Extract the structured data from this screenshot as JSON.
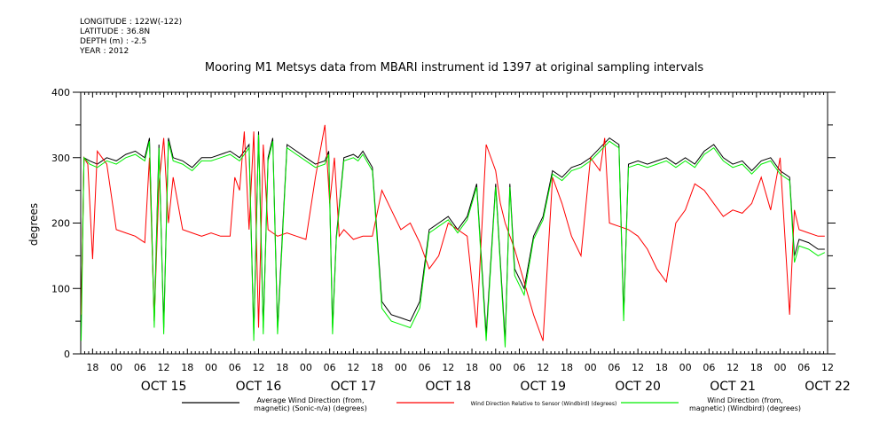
{
  "metadata": {
    "longitude": "LONGITUDE : 122W(-122)",
    "latitude": "LATITUDE : 36.8N",
    "depth": "DEPTH (m) : -2.5",
    "year": "YEAR : 2012"
  },
  "chart_data": {
    "type": "line",
    "title": "Mooring M1 Metsys data from MBARI instrument id 1397 at original sampling intervals",
    "ylabel": "degrees",
    "xlabel": "",
    "ylim": [
      0,
      400
    ],
    "xlim": [
      14.625,
      22.5
    ],
    "x_unit": "day of October 2012 (fractional)",
    "y_ticks": [
      0,
      100,
      200,
      300,
      400
    ],
    "x_hour_ticks": [
      "18",
      "00",
      "06",
      "12",
      "18",
      "00",
      "06",
      "12",
      "18",
      "00",
      "06",
      "12",
      "18",
      "00",
      "06",
      "12",
      "18",
      "00",
      "06",
      "12",
      "18",
      "00",
      "06",
      "12",
      "18",
      "00",
      "06",
      "12",
      "18",
      "00",
      "06",
      "12"
    ],
    "x_day_labels": [
      "OCT 15",
      "OCT 16",
      "OCT 17",
      "OCT 18",
      "OCT 19",
      "OCT 20",
      "OCT 21",
      "OCT 22"
    ],
    "grid": false,
    "legend_position": "bottom",
    "series": [
      {
        "name": "Average Wind Direction (from, magnetic) (Sonic-n/a) (degrees)",
        "legend_lines": [
          "Average Wind Direction (from,",
          "magnetic) (Sonic-n/a) (degrees)"
        ],
        "color": "#000000",
        "x": [
          14.63,
          14.66,
          14.72,
          14.8,
          14.9,
          15.0,
          15.1,
          15.2,
          15.3,
          15.35,
          15.4,
          15.45,
          15.5,
          15.55,
          15.6,
          15.7,
          15.8,
          15.9,
          16.0,
          16.1,
          16.2,
          16.3,
          16.4,
          16.45,
          16.5,
          16.55,
          16.6,
          16.65,
          16.7,
          16.8,
          16.9,
          17.0,
          17.1,
          17.2,
          17.24,
          17.28,
          17.32,
          17.4,
          17.5,
          17.55,
          17.6,
          17.7,
          17.8,
          17.85,
          17.9,
          18.0,
          18.1,
          18.2,
          18.3,
          18.4,
          18.5,
          18.6,
          18.7,
          18.8,
          18.9,
          19.0,
          19.1,
          19.15,
          19.2,
          19.3,
          19.4,
          19.5,
          19.6,
          19.7,
          19.8,
          19.9,
          20.0,
          20.1,
          20.2,
          20.3,
          20.35,
          20.4,
          20.5,
          20.6,
          20.7,
          20.8,
          20.9,
          21.0,
          21.1,
          21.2,
          21.3,
          21.4,
          21.5,
          21.6,
          21.7,
          21.8,
          21.9,
          22.0,
          22.1,
          22.15,
          22.2,
          22.3,
          22.4,
          22.47
        ],
        "y": [
          60,
          300,
          295,
          290,
          300,
          295,
          305,
          310,
          300,
          330,
          50,
          320,
          40,
          330,
          300,
          295,
          285,
          300,
          300,
          305,
          310,
          300,
          320,
          30,
          340,
          40,
          300,
          330,
          40,
          320,
          310,
          300,
          290,
          295,
          310,
          40,
          180,
          300,
          305,
          300,
          310,
          285,
          80,
          70,
          60,
          55,
          50,
          80,
          190,
          200,
          210,
          190,
          210,
          260,
          30,
          260,
          20,
          260,
          130,
          100,
          180,
          210,
          280,
          270,
          285,
          290,
          300,
          315,
          330,
          320,
          60,
          290,
          295,
          290,
          295,
          300,
          290,
          300,
          290,
          310,
          320,
          300,
          290,
          295,
          280,
          295,
          300,
          280,
          270,
          150,
          175,
          170,
          160,
          160
        ]
      },
      {
        "name": "Wind Direction Relative to Sensor (Windbird) (degrees)",
        "legend_lines": [
          "Wind Direction Relative to Sensor (Windbird) (degrees)"
        ],
        "color": "#ff0000",
        "x": [
          14.63,
          14.66,
          14.7,
          14.75,
          14.8,
          14.85,
          14.9,
          15.0,
          15.1,
          15.2,
          15.3,
          15.35,
          15.4,
          15.45,
          15.5,
          15.55,
          15.6,
          15.7,
          15.8,
          15.9,
          16.0,
          16.1,
          16.2,
          16.25,
          16.3,
          16.35,
          16.4,
          16.45,
          16.5,
          16.55,
          16.6,
          16.65,
          16.7,
          16.8,
          16.9,
          17.0,
          17.1,
          17.2,
          17.25,
          17.3,
          17.35,
          17.4,
          17.5,
          17.6,
          17.7,
          17.8,
          17.9,
          18.0,
          18.1,
          18.2,
          18.3,
          18.4,
          18.5,
          18.6,
          18.7,
          18.8,
          18.9,
          19.0,
          19.05,
          19.1,
          19.2,
          19.3,
          19.4,
          19.5,
          19.6,
          19.7,
          19.8,
          19.9,
          20.0,
          20.1,
          20.15,
          20.2,
          20.3,
          20.4,
          20.5,
          20.6,
          20.7,
          20.8,
          20.9,
          21.0,
          21.1,
          21.2,
          21.3,
          21.4,
          21.5,
          21.6,
          21.7,
          21.8,
          21.9,
          22.0,
          22.1,
          22.15,
          22.2,
          22.3,
          22.4,
          22.47
        ],
        "y": [
          60,
          300,
          290,
          145,
          310,
          300,
          290,
          190,
          185,
          180,
          170,
          300,
          50,
          260,
          330,
          200,
          270,
          190,
          185,
          180,
          185,
          180,
          180,
          270,
          250,
          340,
          190,
          340,
          40,
          320,
          190,
          185,
          180,
          185,
          180,
          175,
          270,
          350,
          230,
          300,
          180,
          190,
          175,
          180,
          180,
          250,
          220,
          190,
          200,
          170,
          130,
          150,
          200,
          190,
          180,
          40,
          320,
          280,
          230,
          200,
          160,
          110,
          60,
          20,
          270,
          230,
          180,
          150,
          300,
          280,
          330,
          200,
          195,
          190,
          180,
          160,
          130,
          110,
          200,
          220,
          260,
          250,
          230,
          210,
          220,
          215,
          230,
          270,
          220,
          300,
          60,
          220,
          190,
          185,
          180,
          180
        ]
      },
      {
        "name": "Wind Direction (from, magnetic) (Windbird) (degrees)",
        "legend_lines": [
          "Wind Direction (from,",
          "magnetic) (Windbird) (degrees)"
        ],
        "color": "#00ee00",
        "x": [
          14.63,
          14.66,
          14.72,
          14.8,
          14.9,
          15.0,
          15.1,
          15.2,
          15.3,
          15.35,
          15.4,
          15.45,
          15.5,
          15.55,
          15.6,
          15.7,
          15.8,
          15.9,
          16.0,
          16.1,
          16.2,
          16.3,
          16.4,
          16.45,
          16.5,
          16.55,
          16.6,
          16.65,
          16.7,
          16.8,
          16.9,
          17.0,
          17.1,
          17.2,
          17.24,
          17.28,
          17.32,
          17.4,
          17.5,
          17.55,
          17.6,
          17.7,
          17.8,
          17.85,
          17.9,
          18.0,
          18.1,
          18.2,
          18.3,
          18.4,
          18.5,
          18.6,
          18.7,
          18.8,
          18.9,
          19.0,
          19.1,
          19.15,
          19.2,
          19.3,
          19.4,
          19.5,
          19.6,
          19.7,
          19.8,
          19.9,
          20.0,
          20.1,
          20.2,
          20.3,
          20.35,
          20.4,
          20.5,
          20.6,
          20.7,
          20.8,
          20.9,
          21.0,
          21.1,
          21.2,
          21.3,
          21.4,
          21.5,
          21.6,
          21.7,
          21.8,
          21.9,
          22.0,
          22.1,
          22.15,
          22.2,
          22.3,
          22.4,
          22.47
        ],
        "y": [
          20,
          300,
          290,
          285,
          295,
          290,
          300,
          305,
          295,
          325,
          40,
          315,
          30,
          325,
          295,
          290,
          280,
          295,
          295,
          300,
          305,
          295,
          315,
          20,
          335,
          30,
          295,
          325,
          30,
          315,
          305,
          295,
          285,
          290,
          305,
          30,
          175,
          295,
          300,
          295,
          305,
          280,
          70,
          60,
          50,
          45,
          40,
          70,
          185,
          195,
          205,
          185,
          205,
          255,
          20,
          255,
          10,
          255,
          120,
          90,
          175,
          205,
          275,
          265,
          280,
          285,
          295,
          310,
          325,
          315,
          50,
          285,
          290,
          285,
          290,
          295,
          285,
          295,
          285,
          305,
          315,
          295,
          285,
          290,
          275,
          290,
          295,
          275,
          265,
          140,
          165,
          160,
          150,
          155
        ]
      }
    ]
  }
}
